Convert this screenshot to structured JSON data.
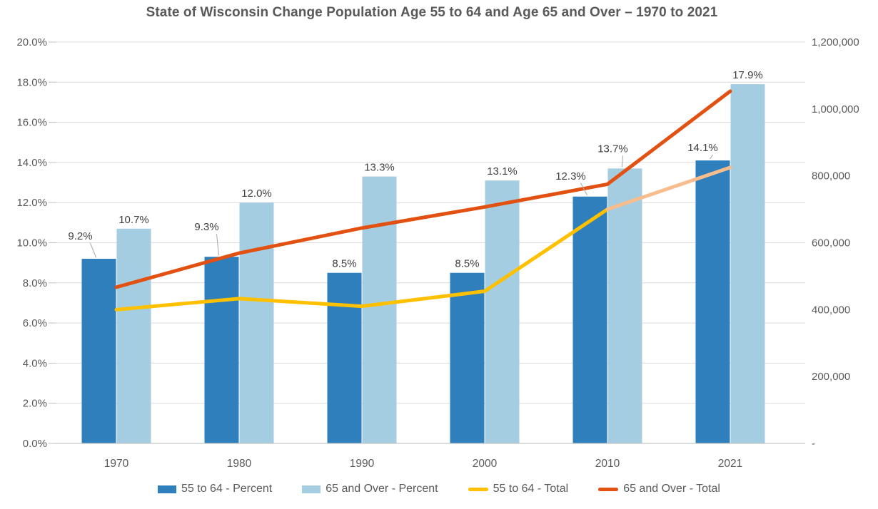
{
  "title": "State of Wisconsin Change Population Age 55 to 64 and Age 65 and Over – 1970 to 2021",
  "chart_data": {
    "type": "combo: clustered bar + line, dual axis",
    "categories": [
      "1970",
      "1980",
      "1990",
      "2000",
      "2010",
      "2021"
    ],
    "left_axis": {
      "ticks": [
        "20.0%",
        "18.0%",
        "16.0%",
        "14.0%",
        "12.0%",
        "10.0%",
        "8.0%",
        "6.0%",
        "4.0%",
        "2.0%",
        "0.0%"
      ],
      "min": 0,
      "max": 20,
      "unit": "%"
    },
    "right_axis": {
      "ticks": [
        "1,200,000",
        "1,000,000",
        "800,000",
        "600,000",
        "400,000",
        "200,000",
        "-"
      ],
      "min": 0,
      "max": 1200000
    },
    "bar_series": [
      {
        "name": "55 to 64 - Percent",
        "color": "#2F7FBC",
        "values": [
          9.2,
          9.3,
          8.5,
          8.5,
          12.3,
          14.1
        ],
        "data_labels": [
          "9.2%",
          "9.3%",
          "8.5%",
          "8.5%",
          "12.3%",
          "14.1%"
        ],
        "label_leader_lines": [
          true,
          true,
          false,
          false,
          true,
          true
        ]
      },
      {
        "name": "65 and Over - Percent",
        "color": "#A5CDE2",
        "values": [
          10.7,
          12.0,
          13.3,
          13.1,
          13.7,
          17.9
        ],
        "data_labels": [
          "10.7%",
          "12.0%",
          "13.3%",
          "13.1%",
          "13.7%",
          "17.9%"
        ],
        "label_leader_lines": [
          false,
          false,
          false,
          false,
          true,
          false
        ]
      }
    ],
    "line_series": [
      {
        "name": "55 to 64 - Total",
        "color": "#FFC000",
        "last_segment_color": "#F8BD8D",
        "values": [
          400000,
          433000,
          410000,
          455000,
          700000,
          825000
        ]
      },
      {
        "name": "65 and Over - Total",
        "color": "#E25012",
        "last_segment_color": null,
        "values": [
          467000,
          569000,
          644000,
          707000,
          775000,
          1053000
        ]
      }
    ],
    "legend": [
      "55 to 64 - Percent",
      "65 and Over - Percent",
      "55 to 64 - Total",
      "65 and Over - Total"
    ],
    "legend_position": "bottom",
    "grid": true
  },
  "palette": {
    "grid": "#DCDCDC",
    "axis_line": "#C6C6C6",
    "tick": "#C0C0C0",
    "axis_text": "#595959",
    "data_label_text": "#404040",
    "leader_line": "#A6A6A6",
    "title_text": "#595959",
    "background": "#FFFFFF"
  }
}
